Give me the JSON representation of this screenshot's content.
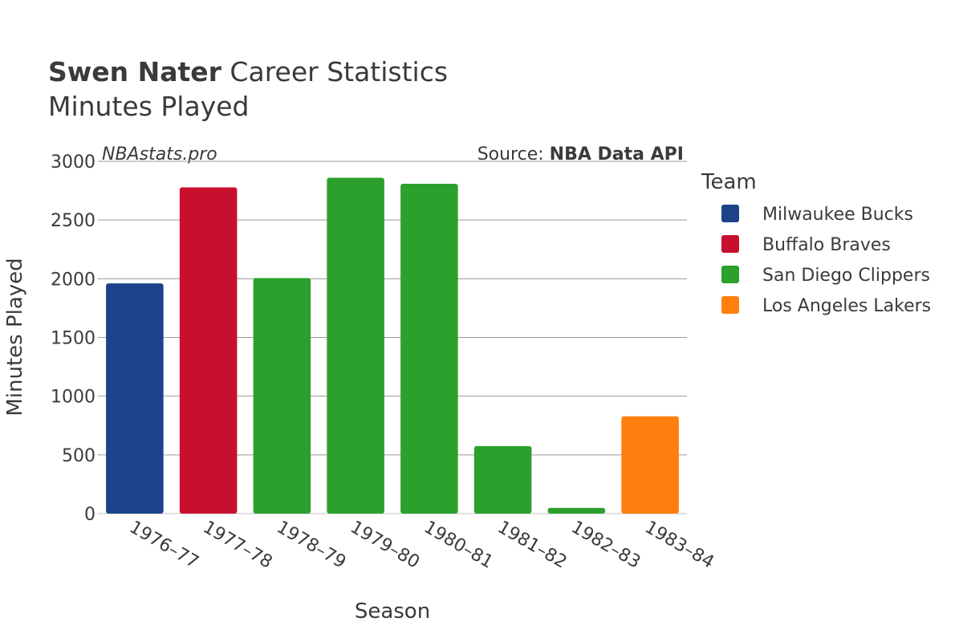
{
  "chart_data": {
    "type": "bar",
    "title_bold": "Swen Nater",
    "title_rest": " Career Statistics",
    "subtitle": "Minutes Played",
    "watermark": "NBAstats.pro",
    "source_prefix": "Source: ",
    "source_name": "NBA Data API",
    "xlabel": "Season",
    "ylabel": "Minutes Played",
    "ylim": [
      0,
      3000
    ],
    "yticks": [
      "0",
      "500",
      "1000",
      "1500",
      "2000",
      "2500",
      "3000"
    ],
    "grid": true,
    "legend_title": "Team",
    "legend_position": "right",
    "categories": [
      "1976–77",
      "1977–78",
      "1978–79",
      "1979–80",
      "1980–81",
      "1981–82",
      "1982–83",
      "1983–84"
    ],
    "values": [
      1960,
      2778,
      2006,
      2860,
      2809,
      575,
      49,
      829
    ],
    "bar_teams": [
      0,
      1,
      2,
      2,
      2,
      2,
      2,
      3
    ],
    "teams": [
      {
        "name": "Milwaukee Bucks",
        "color": "#1d428a"
      },
      {
        "name": "Buffalo Braves",
        "color": "#c8102e"
      },
      {
        "name": "San Diego Clippers",
        "color": "#2ca02c"
      },
      {
        "name": "Los Angeles Lakers",
        "color": "#ff7f0e"
      }
    ]
  }
}
